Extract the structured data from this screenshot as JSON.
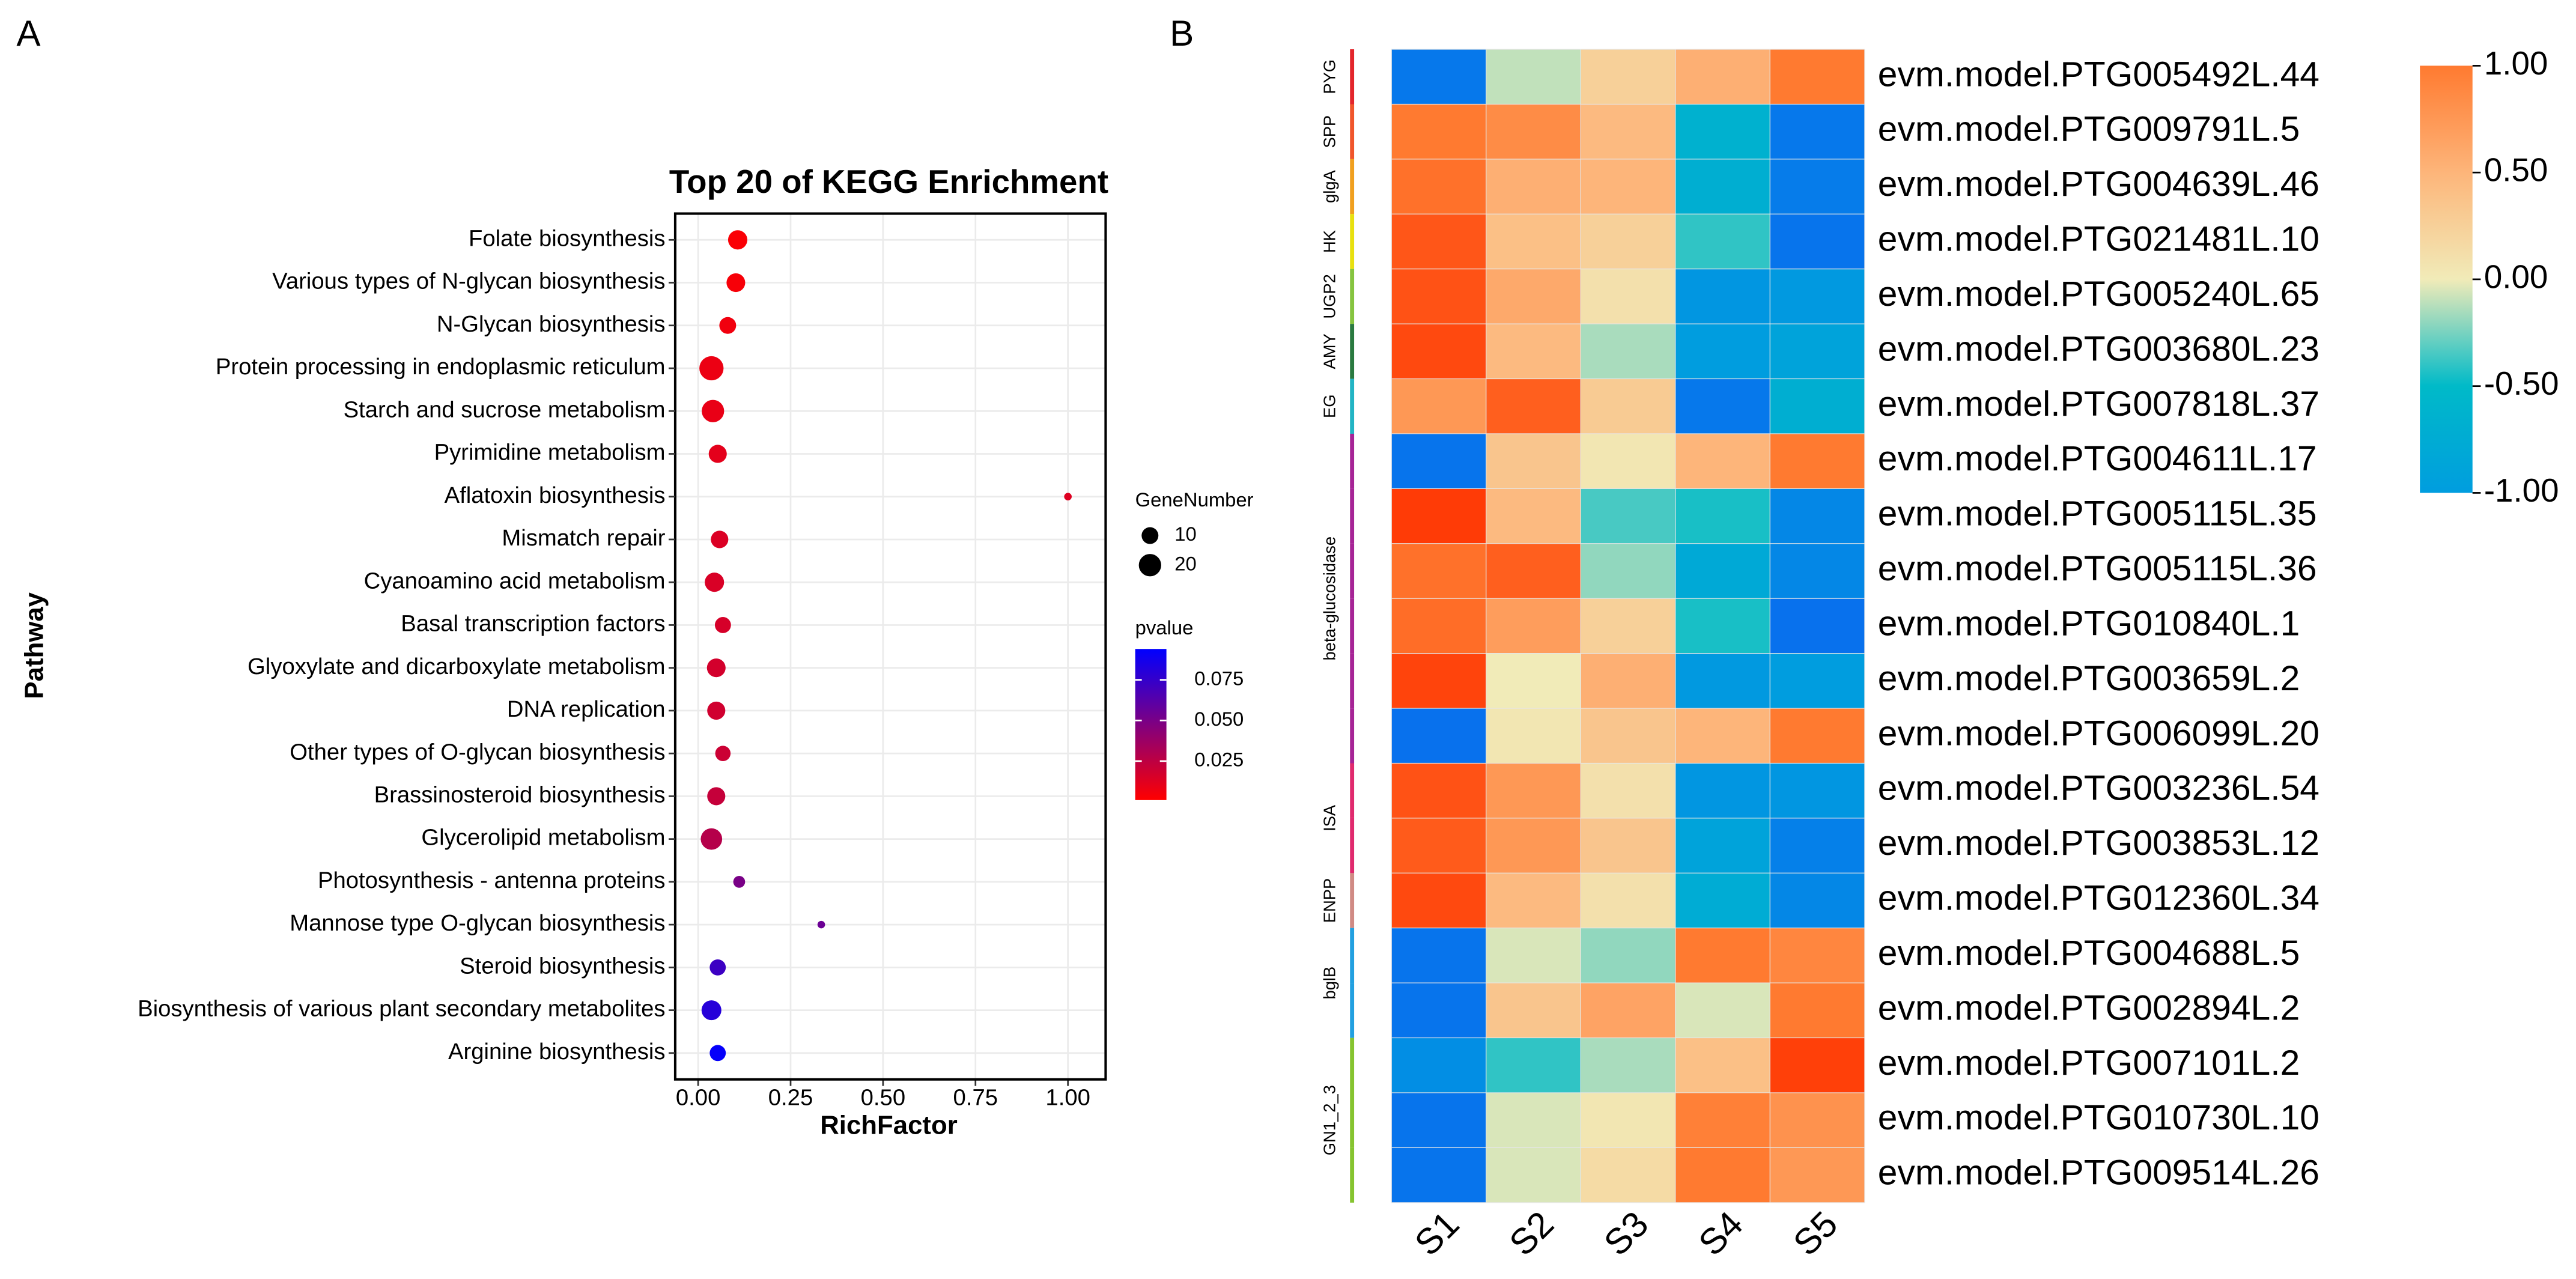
{
  "chart_data": [
    {
      "type": "bubble",
      "panel_label": "A",
      "title": "Top 20 of KEGG Enrichment",
      "x_label": "RichFactor",
      "y_label": "Pathway",
      "categories": [
        "Folate biosynthesis",
        "Various types of N-glycan biosynthesis",
        "N-Glycan biosynthesis",
        "Protein processing in endoplasmic reticulum",
        "Starch and sucrose metabolism",
        "Pyrimidine metabolism",
        "Aflatoxin biosynthesis",
        "Mismatch repair",
        "Cyanoamino acid metabolism",
        "Basal transcription factors",
        "Glyoxylate and dicarboxylate metabolism",
        "DNA replication",
        "Other types of O-glycan biosynthesis",
        "Brassinosteroid biosynthesis",
        "Glycerolipid metabolism",
        "Photosynthesis - antenna proteins",
        "Mannose type O-glycan biosynthesis",
        "Steroid biosynthesis",
        "Biosynthesis of various plant secondary metabolites",
        "Arginine biosynthesis"
      ],
      "x": [
        0.107,
        0.102,
        0.08,
        0.036,
        0.04,
        0.053,
        1.0,
        0.058,
        0.044,
        0.067,
        0.049,
        0.049,
        0.067,
        0.049,
        0.036,
        0.111,
        0.333,
        0.053,
        0.036,
        0.053
      ],
      "size": [
        14,
        13,
        10,
        24,
        20,
        12,
        1,
        11,
        14,
        9,
        13,
        12,
        8,
        12,
        18,
        4,
        1,
        9,
        15,
        9
      ],
      "pvalue": [
        0.003,
        0.004,
        0.006,
        0.008,
        0.009,
        0.011,
        0.013,
        0.014,
        0.015,
        0.016,
        0.017,
        0.018,
        0.02,
        0.022,
        0.028,
        0.05,
        0.055,
        0.072,
        0.08,
        0.092
      ],
      "size_legend_title": "GeneNumber",
      "size_legend": [
        10,
        20
      ],
      "color_legend_title": "pvalue",
      "clim": [
        0.001,
        0.094
      ],
      "cticks": [
        0.025,
        {
          "value": 0.05,
          "label": "0.050"
        },
        0.075
      ],
      "color_low": "#ff0000",
      "color_high": "#0000ff",
      "xlim": [
        -0.062,
        1.102
      ],
      "xticks": [
        {
          "value": 0,
          "label": "0.00"
        },
        0.25,
        {
          "value": 0.5,
          "label": "0.50"
        },
        0.75,
        {
          "value": 1,
          "label": "1.00"
        }
      ],
      "grid": true
    },
    {
      "type": "heatmap",
      "panel_label": "B",
      "rows": [
        "evm.model.PTG005492L.44",
        "evm.model.PTG009791L.5",
        "evm.model.PTG004639L.46",
        "evm.model.PTG021481L.10",
        "evm.model.PTG005240L.65",
        "evm.model.PTG003680L.23",
        "evm.model.PTG007818L.37",
        "evm.model.PTG004611L.17",
        "evm.model.PTG005115L.35",
        "evm.model.PTG005115L.36",
        "evm.model.PTG010840L.1",
        "evm.model.PTG003659L.2",
        "evm.model.PTG006099L.20",
        "evm.model.PTG003236L.54",
        "evm.model.PTG003853L.12",
        "evm.model.PTG012360L.34",
        "evm.model.PTG004688L.5",
        "evm.model.PTG002894L.2",
        "evm.model.PTG007101L.2",
        "evm.model.PTG010730L.10",
        "evm.model.PTG009514L.26"
      ],
      "columns": [
        "S1",
        "S2",
        "S3",
        "S4",
        "S5"
      ],
      "values": [
        [
          -1.5,
          -0.1,
          0.25,
          0.55,
          1.0
        ],
        [
          1.0,
          0.85,
          0.45,
          -0.65,
          -1.5
        ],
        [
          1.1,
          0.55,
          0.5,
          -0.7,
          -1.45
        ],
        [
          1.4,
          0.4,
          0.25,
          -0.4,
          -1.55
        ],
        [
          1.45,
          0.6,
          0.1,
          -1.1,
          -1.05
        ],
        [
          1.55,
          0.45,
          -0.15,
          -1.0,
          -0.9
        ],
        [
          0.75,
          1.3,
          0.3,
          -1.5,
          -0.7
        ],
        [
          -1.55,
          0.35,
          0.05,
          0.5,
          1.0
        ],
        [
          1.7,
          0.45,
          -0.35,
          -0.45,
          -1.3
        ],
        [
          1.1,
          1.3,
          -0.2,
          -0.8,
          -1.3
        ],
        [
          1.15,
          0.7,
          0.25,
          -0.45,
          -1.6
        ],
        [
          1.6,
          0.0,
          0.55,
          -1.05,
          -1.0
        ],
        [
          -1.6,
          0.05,
          0.35,
          0.5,
          1.0
        ],
        [
          1.45,
          0.75,
          0.1,
          -1.1,
          -1.1
        ],
        [
          1.35,
          0.75,
          0.35,
          -0.9,
          -1.4
        ],
        [
          1.55,
          0.45,
          0.1,
          -0.75,
          -1.3
        ],
        [
          -1.55,
          -0.05,
          -0.2,
          1.0,
          0.9
        ],
        [
          -1.55,
          0.35,
          0.65,
          -0.05,
          1.0
        ],
        [
          -1.2,
          -0.4,
          -0.15,
          0.4,
          1.65
        ],
        [
          -1.55,
          -0.05,
          0.05,
          0.95,
          0.8
        ],
        [
          -1.55,
          -0.05,
          0.15,
          1.0,
          0.75
        ]
      ],
      "row_groups": [
        "PYG",
        "SPP",
        "glgA",
        "HK",
        "UGP2",
        "AMY",
        "EG",
        "beta-glucosidase",
        "beta-glucosidase",
        "beta-glucosidase",
        "beta-glucosidase",
        "beta-glucosidase",
        "beta-glucosidase",
        "ISA",
        "ISA",
        "ENPP",
        "bglB",
        "bglB",
        "GN1_2_3",
        "GN1_2_3",
        "GN1_2_3"
      ],
      "group_colors": [
        "#e3262c",
        "#f0562c",
        "#f0a020",
        "#e8e010",
        "#86c440",
        "#2a7a40",
        "#22b4c4",
        "#a62496",
        "#a62496",
        "#a62496",
        "#a62496",
        "#a62496",
        "#a62496",
        "#e02a6e",
        "#e02a6e",
        "#d08a84",
        "#22a0e0",
        "#22a0e0",
        "#86c430",
        "#86c430",
        "#86c430"
      ],
      "clim": [
        -1,
        1
      ],
      "cticks": [
        {
          "value": 1,
          "label": "1.00"
        },
        {
          "value": 0.5,
          "label": "0.50"
        },
        {
          "value": 0,
          "label": "0.00"
        },
        {
          "value": -0.5,
          "label": "-0.50"
        },
        {
          "value": -1,
          "label": "-1.00"
        }
      ],
      "color_stops": [
        {
          "value": -1.8,
          "color": "#0a62f2"
        },
        {
          "value": -1,
          "color": "#009ddf"
        },
        {
          "value": -0.5,
          "color": "#00bac8"
        },
        {
          "value": 0,
          "color": "#f1ebb8"
        },
        {
          "value": 0.5,
          "color": "#fdb57a"
        },
        {
          "value": 1,
          "color": "#ff7a30"
        },
        {
          "value": 1.8,
          "color": "#ff3200"
        }
      ]
    }
  ]
}
